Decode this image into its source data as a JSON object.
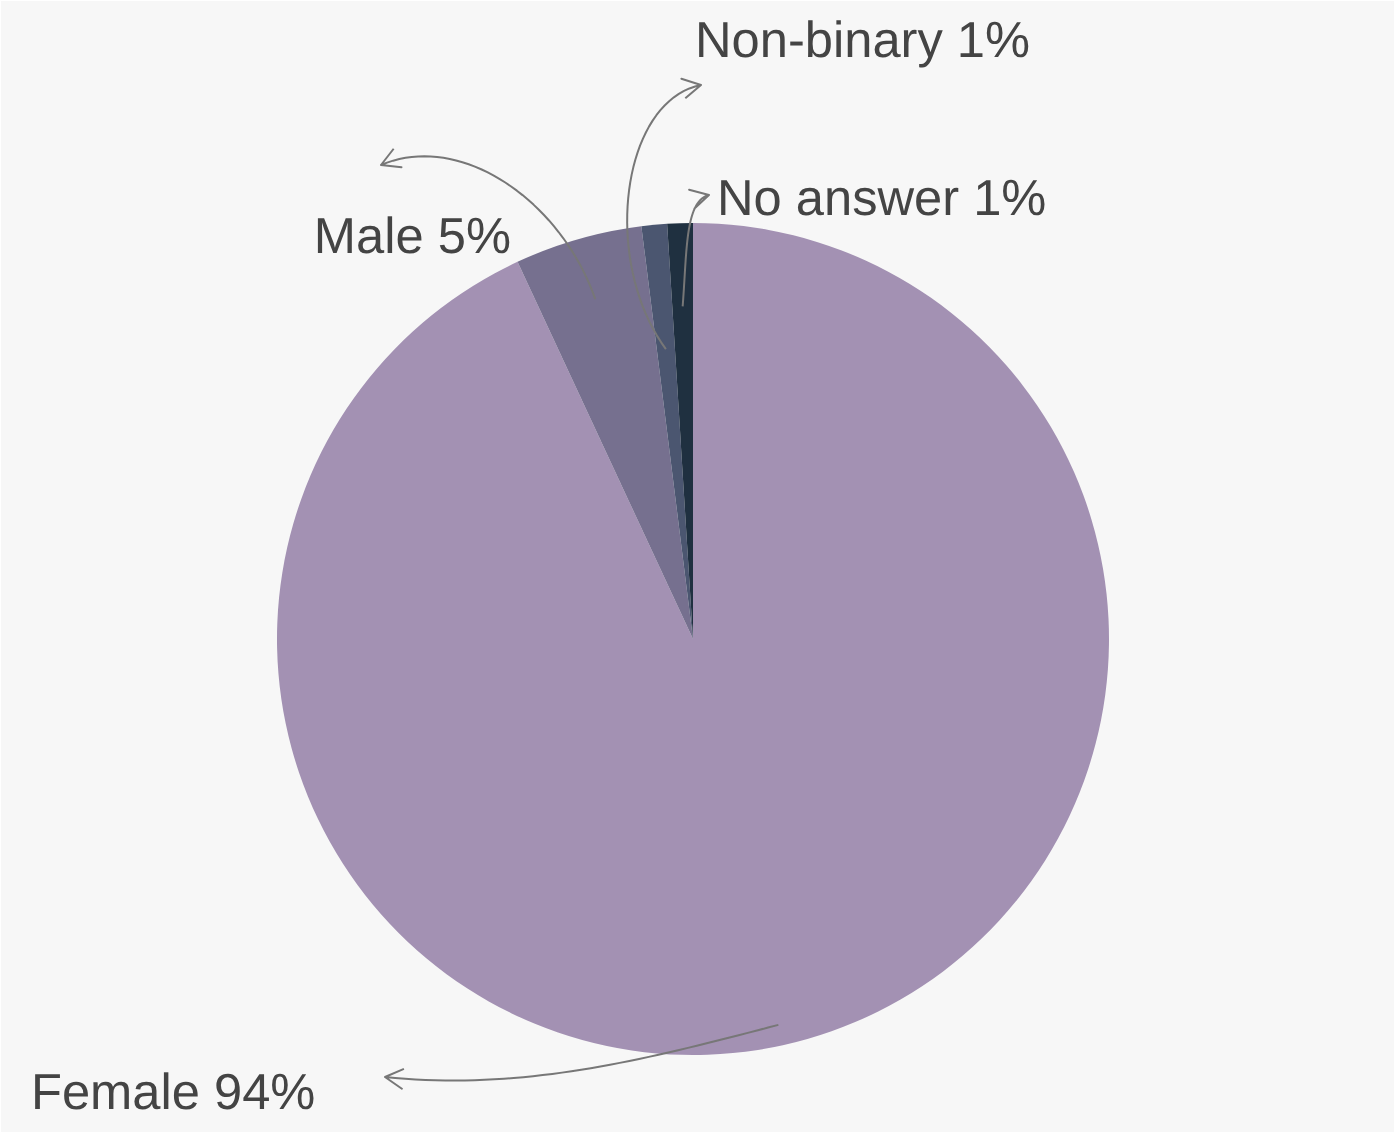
{
  "chart_data": {
    "type": "pie",
    "categories": [
      "Female",
      "Male",
      "Non-binary",
      "No answer"
    ],
    "values": [
      94,
      5,
      1,
      1
    ],
    "value_labels": [
      "94%",
      "5%",
      "1%",
      "1%"
    ],
    "colors": [
      "#a391b3",
      "#76708f",
      "#4b5670",
      "#1f3040"
    ]
  }
}
